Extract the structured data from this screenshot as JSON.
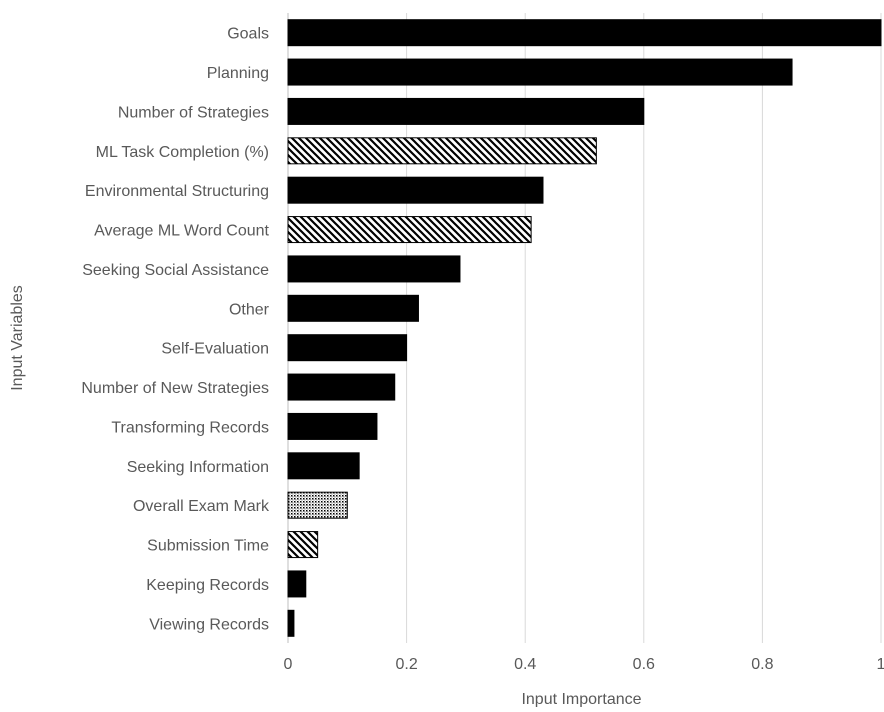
{
  "chart_data": {
    "type": "bar",
    "orientation": "horizontal",
    "title": "",
    "xlabel": "Input Importance",
    "ylabel": "Input Variables",
    "xlim": [
      0,
      1
    ],
    "x_ticks": [
      "0",
      "0.2",
      "0.4",
      "0.6",
      "0.8",
      "1"
    ],
    "x_tick_values": [
      0,
      0.2,
      0.4,
      0.6,
      0.8,
      1
    ],
    "grid": "vertical",
    "legend": "none",
    "categories": [
      "Goals",
      "Planning",
      "Number of Strategies",
      "ML Task Completion (%)",
      "Environmental Structuring",
      "Average ML Word Count",
      "Seeking Social Assistance",
      "Other",
      "Self-Evaluation",
      "Number of New Strategies",
      "Transforming Records",
      "Seeking Information",
      "Overall Exam Mark",
      "Submission Time",
      "Keeping Records",
      "Viewing Records"
    ],
    "values": [
      1.0,
      0.85,
      0.6,
      0.52,
      0.43,
      0.41,
      0.29,
      0.22,
      0.2,
      0.18,
      0.15,
      0.12,
      0.1,
      0.05,
      0.03,
      0.01
    ],
    "fills": [
      "solid",
      "solid",
      "solid",
      "diagonal-hatch",
      "solid",
      "diagonal-hatch",
      "solid",
      "solid",
      "solid",
      "solid",
      "solid",
      "solid",
      "dotted",
      "diagonal-hatch",
      "solid",
      "solid"
    ],
    "colors": {
      "bar": "#000000",
      "grid": "#d9d9d9",
      "text": "#595959"
    }
  }
}
